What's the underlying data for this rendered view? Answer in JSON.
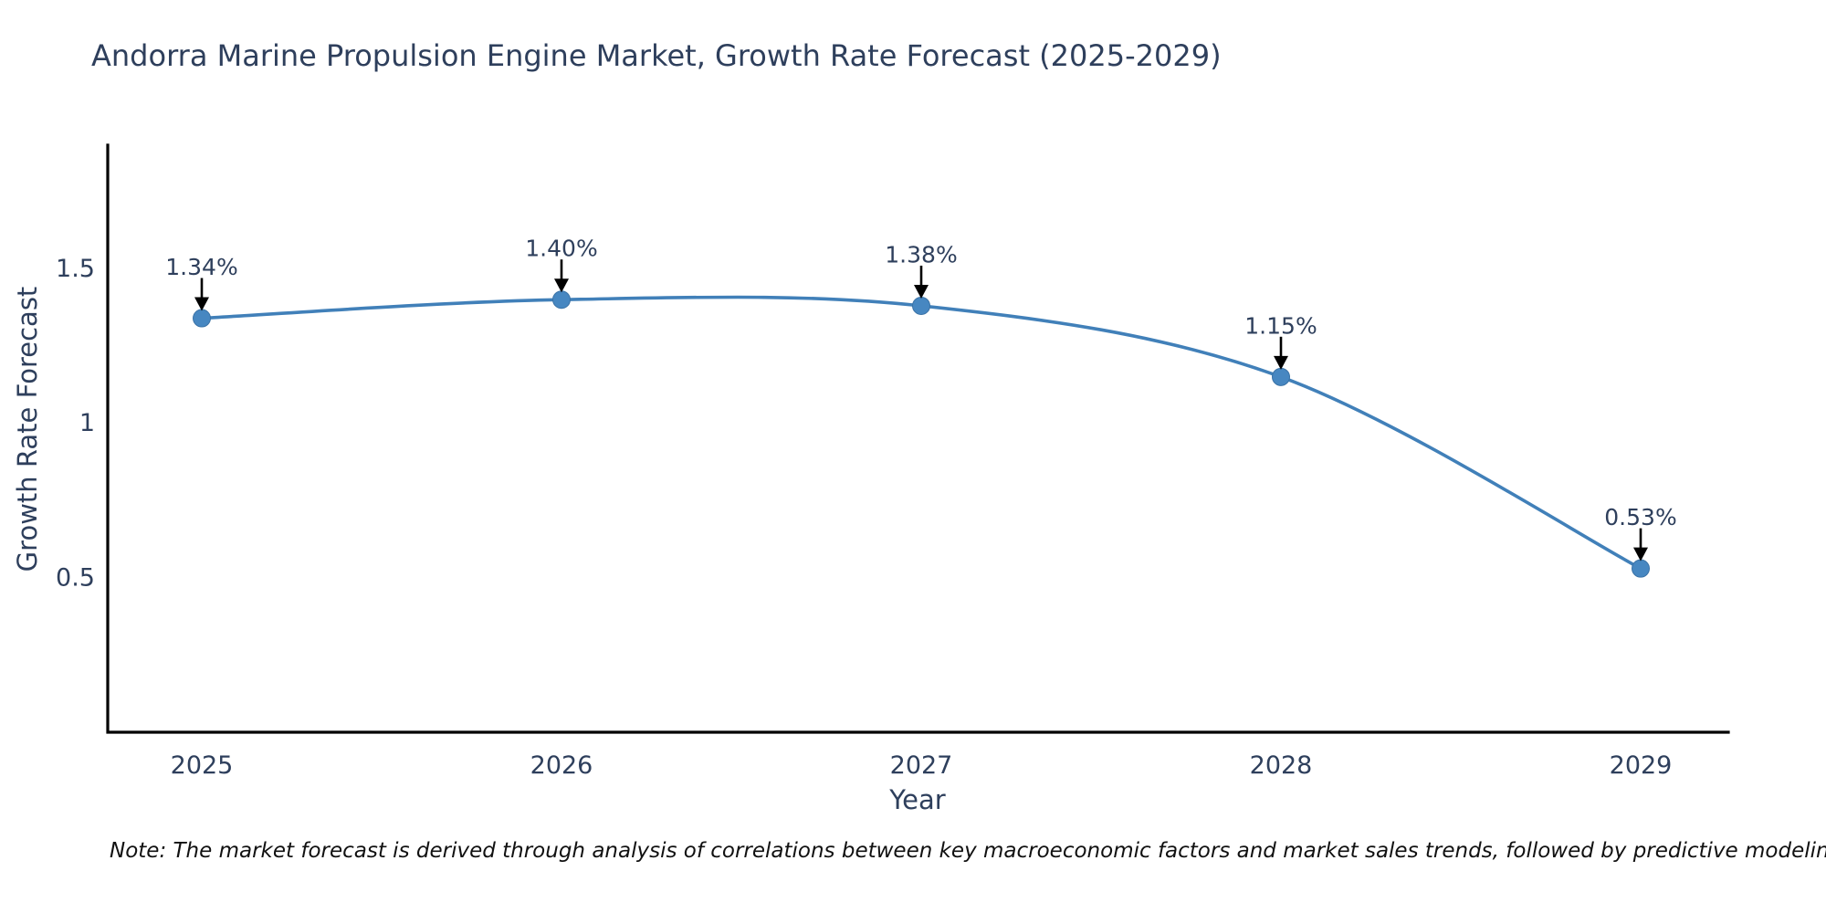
{
  "chart": {
    "title": "Andorra Marine Propulsion Engine Market, Growth Rate Forecast (2025-2029)",
    "xlabel": "Year",
    "ylabel": "Growth Rate Forecast"
  },
  "note": {
    "text": "Note: The market forecast is derived through analysis of correlations between key macroeconomic factors and market sales trends, followed by predictive modeling to project future sales"
  },
  "chart_data": {
    "type": "line",
    "title": "Andorra Marine Propulsion Engine Market, Growth Rate Forecast (2025-2029)",
    "xlabel": "Year",
    "ylabel": "Growth Rate Forecast",
    "x": [
      2025,
      2026,
      2027,
      2028,
      2029
    ],
    "series": [
      {
        "name": "Growth Rate Forecast",
        "values": [
          1.34,
          1.4,
          1.38,
          1.15,
          0.53
        ],
        "point_labels": [
          "1.34%",
          "1.40%",
          "1.38%",
          "1.15%",
          "0.53%"
        ]
      }
    ],
    "line_shape": "spline",
    "markers": true,
    "yticks": [
      0.5,
      1,
      1.5
    ],
    "ylim": [
      0,
      1.9
    ],
    "grid": false,
    "legend": "none",
    "colors": {
      "line": "#4180b9",
      "marker": "#4787c1",
      "marker_edge": "#3a72a6",
      "axis": "#000000",
      "text": "#2e3f5c",
      "annotation_arrow": "#000000",
      "background": "#ffffff"
    }
  }
}
